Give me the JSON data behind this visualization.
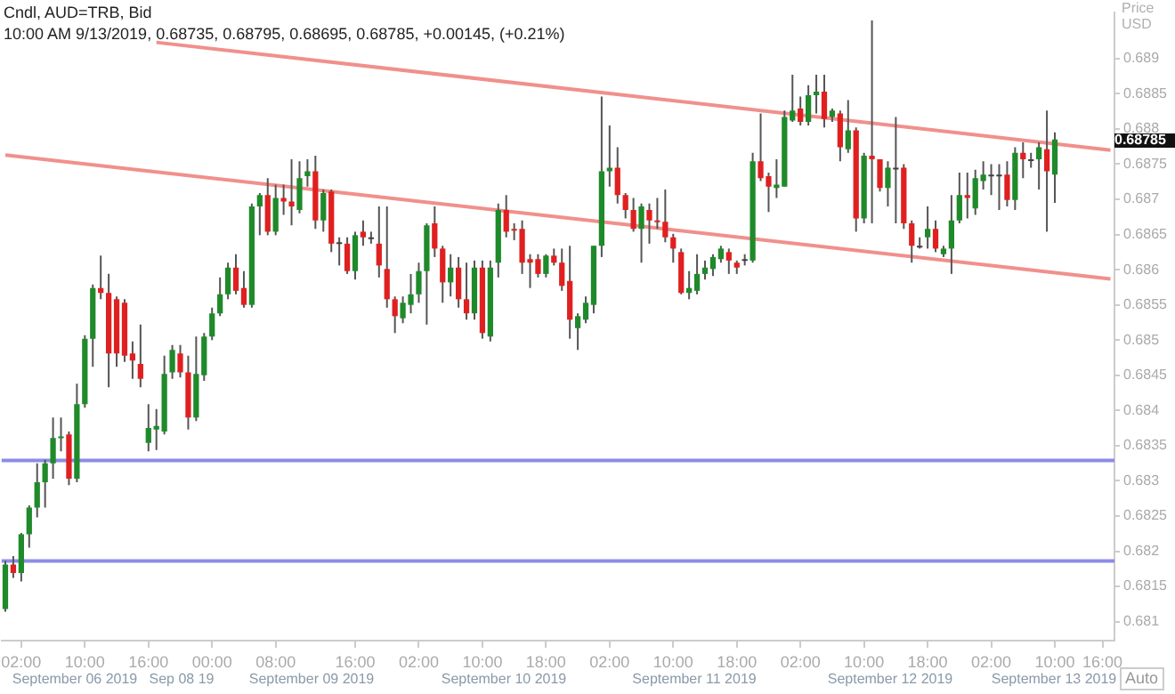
{
  "chart_data": {
    "type": "candlestick",
    "title": "Cndl, AUD=TRB, Bid",
    "subtitle": "10:00 AM 9/13/2019, 0.68735, 0.68795, 0.68695, 0.68785, +0.00145, (+0.21%)",
    "ylabel": "Price USD",
    "categories": [
      null,
      null,
      "02:00",
      null,
      null,
      null,
      null,
      null,
      null,
      null,
      "10:00",
      null,
      null,
      null,
      null,
      null,
      null,
      null,
      "16:00",
      null,
      null,
      null,
      null,
      null,
      null,
      null,
      "00:00",
      null,
      null,
      null,
      null,
      null,
      null,
      null,
      "08:00",
      null,
      null,
      null,
      null,
      null,
      null,
      null,
      null,
      null,
      "16:00",
      null,
      null,
      null,
      null,
      null,
      null,
      null,
      "02:00",
      null,
      null,
      null,
      null,
      null,
      null,
      null,
      "10:00",
      null,
      null,
      null,
      null,
      null,
      null,
      null,
      "18:00",
      null,
      null,
      null,
      null,
      null,
      null,
      null,
      "02:00",
      null,
      null,
      null,
      null,
      null,
      null,
      null,
      "10:00",
      null,
      null,
      null,
      null,
      null,
      null,
      null,
      "18:00",
      null,
      null,
      null,
      null,
      null,
      null,
      null,
      "02:00",
      null,
      null,
      null,
      null,
      null,
      null,
      null,
      "10:00",
      null,
      null,
      null,
      null,
      null,
      null,
      null,
      "18:00",
      null,
      null,
      null,
      null,
      null,
      null,
      null,
      "02:00",
      null,
      null,
      null,
      null,
      null,
      null,
      null,
      "10:00",
      null,
      null,
      null,
      null,
      null,
      "16:00",
      null
    ],
    "ylim": [
      0.68073,
      0.68966
    ],
    "yticks": [
      0.681,
      0.6815,
      0.682,
      0.6825,
      0.683,
      0.6835,
      0.684,
      0.6845,
      0.685,
      0.6855,
      0.686,
      0.6865,
      0.687,
      0.6875,
      0.688,
      0.6885,
      0.689
    ],
    "grid": false,
    "legend": false,
    "ohlc": [
      [
        0.68118,
        0.68186,
        0.68114,
        0.68181
      ],
      [
        0.68181,
        0.68193,
        0.68162,
        0.68169
      ],
      [
        0.68169,
        0.68226,
        0.68157,
        0.68224
      ],
      [
        0.68224,
        0.68265,
        0.68205,
        0.68262
      ],
      [
        0.68262,
        0.68325,
        0.68248,
        0.68298
      ],
      [
        0.68298,
        0.6833,
        0.68262,
        0.68325
      ],
      [
        0.68325,
        0.6839,
        0.68303,
        0.68361
      ],
      [
        0.68361,
        0.6839,
        0.68342,
        0.68363
      ],
      [
        0.68366,
        0.6837,
        0.68294,
        0.68303
      ],
      [
        0.68303,
        0.68438,
        0.68298,
        0.68409
      ],
      [
        0.68409,
        0.68507,
        0.68404,
        0.68502
      ],
      [
        0.68502,
        0.68579,
        0.68462,
        0.68574
      ],
      [
        0.68574,
        0.6862,
        0.68558,
        0.68567
      ],
      [
        0.68567,
        0.68594,
        0.68433,
        0.68481
      ],
      [
        0.68558,
        0.68562,
        0.68462,
        0.68481
      ],
      [
        0.68553,
        0.68558,
        0.68469,
        0.68478
      ],
      [
        0.68481,
        0.68498,
        0.68445,
        0.68471
      ],
      [
        0.68466,
        0.68522,
        0.68433,
        0.68445
      ],
      [
        0.68354,
        0.68409,
        0.68342,
        0.68375
      ],
      [
        0.68373,
        0.68402,
        0.68344,
        0.68378
      ],
      [
        0.6837,
        0.68478,
        0.68366,
        0.68452
      ],
      [
        0.68454,
        0.68493,
        0.68445,
        0.68486
      ],
      [
        0.68481,
        0.68493,
        0.68447,
        0.68454
      ],
      [
        0.68454,
        0.68478,
        0.68373,
        0.6839
      ],
      [
        0.6839,
        0.68505,
        0.68385,
        0.68452
      ],
      [
        0.6845,
        0.6851,
        0.68442,
        0.68505
      ],
      [
        0.68505,
        0.68546,
        0.685,
        0.68538
      ],
      [
        0.68538,
        0.68589,
        0.68534,
        0.68565
      ],
      [
        0.68565,
        0.6861,
        0.68558,
        0.68603
      ],
      [
        0.68603,
        0.68622,
        0.68565,
        0.6857
      ],
      [
        0.68574,
        0.68598,
        0.68546,
        0.6855
      ],
      [
        0.6855,
        0.68694,
        0.68546,
        0.6869
      ],
      [
        0.6869,
        0.68709,
        0.68649,
        0.68706
      ],
      [
        0.68706,
        0.6873,
        0.68649,
        0.68654
      ],
      [
        0.68654,
        0.68721,
        0.68649,
        0.68702
      ],
      [
        0.68702,
        0.68721,
        0.68678,
        0.68697
      ],
      [
        0.68697,
        0.68757,
        0.68663,
        0.6869
      ],
      [
        0.68685,
        0.68754,
        0.6868,
        0.6873
      ],
      [
        0.68733,
        0.68757,
        0.68718,
        0.6874
      ],
      [
        0.6874,
        0.68762,
        0.68658,
        0.6867
      ],
      [
        0.6867,
        0.68714,
        0.68654,
        0.68709
      ],
      [
        0.68711,
        0.68714,
        0.68625,
        0.68637
      ],
      [
        0.68639,
        0.68646,
        0.68606,
        0.68639
      ],
      [
        0.68637,
        0.68646,
        0.68594,
        0.68598
      ],
      [
        0.68598,
        0.68654,
        0.68586,
        0.68649
      ],
      [
        0.68654,
        0.6867,
        0.68634,
        0.68646
      ],
      [
        0.68646,
        0.68654,
        0.68637,
        0.68646
      ],
      [
        0.68637,
        0.6869,
        0.68589,
        0.68606
      ],
      [
        0.68601,
        0.6869,
        0.68546,
        0.68558
      ],
      [
        0.68558,
        0.68562,
        0.6851,
        0.68534
      ],
      [
        0.68531,
        0.68562,
        0.68524,
        0.68553
      ],
      [
        0.6855,
        0.68594,
        0.68538,
        0.68565
      ],
      [
        0.68565,
        0.6861,
        0.68553,
        0.68598
      ],
      [
        0.68598,
        0.68666,
        0.68522,
        0.68663
      ],
      [
        0.68666,
        0.6869,
        0.68618,
        0.6863
      ],
      [
        0.6863,
        0.68634,
        0.68553,
        0.68582
      ],
      [
        0.68582,
        0.68622,
        0.68562,
        0.68603
      ],
      [
        0.68603,
        0.68618,
        0.68546,
        0.68558
      ],
      [
        0.68558,
        0.6861,
        0.68529,
        0.68538
      ],
      [
        0.68538,
        0.68613,
        0.68529,
        0.68603
      ],
      [
        0.68603,
        0.68613,
        0.68502,
        0.6851
      ],
      [
        0.68505,
        0.68613,
        0.68498,
        0.68603
      ],
      [
        0.6861,
        0.68694,
        0.68589,
        0.68685
      ],
      [
        0.68685,
        0.68706,
        0.68646,
        0.68654
      ],
      [
        0.68658,
        0.68666,
        0.68642,
        0.68656
      ],
      [
        0.68658,
        0.6867,
        0.68594,
        0.6861
      ],
      [
        0.68615,
        0.68622,
        0.68574,
        0.6861
      ],
      [
        0.68615,
        0.68622,
        0.68589,
        0.68594
      ],
      [
        0.68594,
        0.68622,
        0.68589,
        0.6862
      ],
      [
        0.6862,
        0.6863,
        0.68606,
        0.6861
      ],
      [
        0.6861,
        0.6863,
        0.6857,
        0.68577
      ],
      [
        0.68584,
        0.68634,
        0.68502,
        0.68529
      ],
      [
        0.68517,
        0.68538,
        0.68486,
        0.68534
      ],
      [
        0.68529,
        0.68562,
        0.68524,
        0.68553
      ],
      [
        0.6855,
        0.68634,
        0.68538,
        0.68634
      ],
      [
        0.68634,
        0.68846,
        0.68618,
        0.6874
      ],
      [
        0.6874,
        0.68805,
        0.68718,
        0.68745
      ],
      [
        0.68745,
        0.68774,
        0.68694,
        0.68706
      ],
      [
        0.68706,
        0.68709,
        0.68673,
        0.68685
      ],
      [
        0.68685,
        0.68702,
        0.68654,
        0.68658
      ],
      [
        0.68658,
        0.68694,
        0.6861,
        0.6869
      ],
      [
        0.68685,
        0.68694,
        0.68637,
        0.6867
      ],
      [
        0.6867,
        0.68702,
        0.68658,
        0.68668
      ],
      [
        0.68668,
        0.68714,
        0.68639,
        0.68646
      ],
      [
        0.68646,
        0.68651,
        0.6861,
        0.6863
      ],
      [
        0.68625,
        0.6863,
        0.68565,
        0.68567
      ],
      [
        0.68567,
        0.68598,
        0.68558,
        0.68574
      ],
      [
        0.6857,
        0.68622,
        0.68565,
        0.68594
      ],
      [
        0.68594,
        0.68613,
        0.68586,
        0.68603
      ],
      [
        0.68601,
        0.68622,
        0.68591,
        0.68618
      ],
      [
        0.68615,
        0.68634,
        0.6861,
        0.6863
      ],
      [
        0.68625,
        0.6863,
        0.68594,
        0.68613
      ],
      [
        0.6861,
        0.68613,
        0.68594,
        0.68603
      ],
      [
        0.68615,
        0.68622,
        0.68606,
        0.68615
      ],
      [
        0.68613,
        0.68766,
        0.6861,
        0.68754
      ],
      [
        0.68754,
        0.68822,
        0.68726,
        0.6873
      ],
      [
        0.68733,
        0.68738,
        0.68682,
        0.68718
      ],
      [
        0.68716,
        0.68757,
        0.68702,
        0.68721
      ],
      [
        0.68718,
        0.68826,
        0.68718,
        0.68817
      ],
      [
        0.68812,
        0.68877,
        0.6881,
        0.68826
      ],
      [
        0.68829,
        0.68846,
        0.68805,
        0.6881
      ],
      [
        0.6881,
        0.68862,
        0.68805,
        0.68848
      ],
      [
        0.68848,
        0.68877,
        0.68822,
        0.68853
      ],
      [
        0.68853,
        0.68877,
        0.68802,
        0.68814
      ],
      [
        0.68817,
        0.68829,
        0.6881,
        0.68826
      ],
      [
        0.68822,
        0.68826,
        0.68754,
        0.68774
      ],
      [
        0.68771,
        0.68841,
        0.68766,
        0.68798
      ],
      [
        0.68798,
        0.68802,
        0.68654,
        0.68673
      ],
      [
        0.68673,
        0.68766,
        0.68666,
        0.68762
      ],
      [
        0.68762,
        0.68954,
        0.68666,
        0.68757
      ],
      [
        0.68757,
        0.68757,
        0.68711,
        0.68716
      ],
      [
        0.68716,
        0.68754,
        0.6869,
        0.68745
      ],
      [
        0.68745,
        0.68817,
        0.68666,
        0.68745
      ],
      [
        0.68745,
        0.6875,
        0.68658,
        0.68666
      ],
      [
        0.68666,
        0.6867,
        0.6861,
        0.68634
      ],
      [
        0.68634,
        0.68646,
        0.6863,
        0.68634
      ],
      [
        0.68646,
        0.6869,
        0.6863,
        0.68658
      ],
      [
        0.68658,
        0.6867,
        0.68625,
        0.6863
      ],
      [
        0.68622,
        0.68634,
        0.68618,
        0.6863
      ],
      [
        0.6863,
        0.68706,
        0.68594,
        0.6867
      ],
      [
        0.6867,
        0.68738,
        0.68666,
        0.68706
      ],
      [
        0.68706,
        0.68738,
        0.68673,
        0.68702
      ],
      [
        0.68687,
        0.68742,
        0.68678,
        0.6873
      ],
      [
        0.68726,
        0.68754,
        0.68714,
        0.68735
      ],
      [
        0.68735,
        0.6875,
        0.68706,
        0.68735
      ],
      [
        0.68735,
        0.6875,
        0.68685,
        0.68735
      ],
      [
        0.68735,
        0.68754,
        0.6869,
        0.68699
      ],
      [
        0.68699,
        0.68774,
        0.68685,
        0.68766
      ],
      [
        0.68766,
        0.68781,
        0.6873,
        0.68757
      ],
      [
        0.68757,
        0.68766,
        0.68745,
        0.68757
      ],
      [
        0.68757,
        0.68781,
        0.68714,
        0.68774
      ],
      [
        0.68771,
        0.68826,
        0.68654,
        0.6874
      ],
      [
        0.68735,
        0.68795,
        0.68695,
        0.68785
      ],
      null,
      null,
      null,
      null,
      null,
      null,
      null
    ],
    "colors": [
      "#1f8a2a",
      "#e02020",
      "#1f8a2a",
      "#1f8a2a",
      "#1f8a2a",
      "#1f8a2a",
      "#1f8a2a",
      "#1f8a2a",
      "#e02020",
      "#1f8a2a",
      "#1f8a2a",
      "#1f8a2a",
      "#e02020",
      "#e02020",
      "#e02020",
      "#e02020",
      "#e02020",
      "#e02020",
      "#1f8a2a",
      "#1f8a2a",
      "#1f8a2a",
      "#1f8a2a",
      "#e02020",
      "#e02020",
      "#1f8a2a",
      "#1f8a2a",
      "#1f8a2a",
      "#1f8a2a",
      "#1f8a2a",
      "#e02020",
      "#e02020",
      "#1f8a2a",
      "#1f8a2a",
      "#e02020",
      "#1f8a2a",
      "#e02020",
      "#e02020",
      "#1f8a2a",
      "#1f8a2a",
      "#e02020",
      "#1f8a2a",
      "#e02020",
      "#404040",
      "#e02020",
      "#1f8a2a",
      "#e02020",
      "#404040",
      "#e02020",
      "#e02020",
      "#e02020",
      "#1f8a2a",
      "#1f8a2a",
      "#1f8a2a",
      "#1f8a2a",
      "#e02020",
      "#e02020",
      "#1f8a2a",
      "#e02020",
      "#e02020",
      "#1f8a2a",
      "#e02020",
      "#1f8a2a",
      "#1f8a2a",
      "#e02020",
      "#e02020",
      "#e02020",
      "#e02020",
      "#e02020",
      "#1f8a2a",
      "#e02020",
      "#e02020",
      "#e02020",
      "#1f8a2a",
      "#1f8a2a",
      "#1f8a2a",
      "#1f8a2a",
      "#1f8a2a",
      "#e02020",
      "#e02020",
      "#e02020",
      "#1f8a2a",
      "#e02020",
      "#e02020",
      "#e02020",
      "#e02020",
      "#e02020",
      "#1f8a2a",
      "#1f8a2a",
      "#1f8a2a",
      "#1f8a2a",
      "#1f8a2a",
      "#e02020",
      "#e02020",
      "#404040",
      "#1f8a2a",
      "#e02020",
      "#e02020",
      "#1f8a2a",
      "#1f8a2a",
      "#1f8a2a",
      "#e02020",
      "#1f8a2a",
      "#1f8a2a",
      "#e02020",
      "#1f8a2a",
      "#e02020",
      "#1f8a2a",
      "#e02020",
      "#1f8a2a",
      "#e02020",
      "#e02020",
      "#1f8a2a",
      "#404040",
      "#e02020",
      "#e02020",
      "#404040",
      "#1f8a2a",
      "#e02020",
      "#1f8a2a",
      "#1f8a2a",
      "#1f8a2a",
      "#e02020",
      "#1f8a2a",
      "#1f8a2a",
      "#404040",
      "#404040",
      "#e02020",
      "#1f8a2a",
      "#e02020",
      "#404040",
      "#1f8a2a",
      "#e02020",
      "#1f8a2a",
      null,
      null,
      null,
      null,
      null,
      null,
      null
    ],
    "series": [
      {
        "type": "line",
        "color": "#f0908c",
        "values": [
          null,
          null,
          null,
          null,
          null,
          null,
          null,
          null,
          null,
          null,
          null,
          null,
          null,
          null,
          null,
          null,
          null,
          null,
          null,
          0.68923,
          null,
          null,
          null,
          null,
          null,
          null,
          null,
          null,
          null,
          null,
          null,
          null,
          null,
          null,
          null,
          null,
          null,
          null,
          null,
          null,
          null,
          null,
          null,
          null,
          null,
          null,
          null,
          null,
          null,
          null,
          null,
          null,
          null,
          null,
          null,
          null,
          null,
          null,
          null,
          null,
          null,
          null,
          null,
          null,
          null,
          null,
          null,
          null,
          null,
          null,
          null,
          null,
          null,
          null,
          null,
          null,
          null,
          null,
          null,
          null,
          null,
          null,
          null,
          null,
          null,
          null,
          null,
          null,
          null,
          null,
          null,
          null,
          null,
          null,
          null,
          null,
          null,
          null,
          null,
          null,
          null,
          null,
          null,
          null,
          null,
          null,
          null,
          null,
          null,
          null,
          null,
          null,
          null,
          null,
          null,
          null,
          null,
          null,
          null,
          null,
          null,
          null,
          null,
          null,
          null,
          null,
          null,
          null,
          null,
          null,
          null,
          null,
          null,
          null,
          null,
          null,
          null,
          null,
          null,
          0.6877
        ]
      },
      {
        "type": "line",
        "color": "#f0908c",
        "values": [
          0.68763,
          null,
          null,
          null,
          null,
          null,
          null,
          null,
          null,
          null,
          null,
          null,
          null,
          null,
          null,
          null,
          null,
          null,
          null,
          null,
          null,
          null,
          null,
          null,
          null,
          null,
          null,
          null,
          null,
          null,
          null,
          null,
          null,
          null,
          null,
          null,
          null,
          null,
          null,
          null,
          null,
          null,
          null,
          null,
          null,
          null,
          null,
          null,
          null,
          null,
          null,
          null,
          null,
          null,
          null,
          null,
          null,
          null,
          null,
          null,
          null,
          null,
          null,
          null,
          null,
          null,
          null,
          null,
          null,
          null,
          null,
          null,
          null,
          null,
          null,
          null,
          null,
          null,
          null,
          null,
          null,
          null,
          null,
          null,
          null,
          null,
          null,
          null,
          null,
          null,
          null,
          null,
          null,
          null,
          null,
          null,
          null,
          null,
          null,
          null,
          null,
          null,
          null,
          null,
          null,
          null,
          null,
          null,
          null,
          null,
          null,
          null,
          null,
          null,
          null,
          null,
          null,
          null,
          null,
          null,
          null,
          null,
          null,
          null,
          null,
          null,
          null,
          null,
          null,
          null,
          null,
          null,
          null,
          null,
          null,
          null,
          null,
          null,
          null,
          0.68587
        ]
      }
    ],
    "ref_lines": [
      {
        "axis": "y",
        "value": 0.68329,
        "color": "#8c8ce6"
      },
      {
        "axis": "y",
        "value": 0.68186,
        "color": "#8c8ce6"
      }
    ],
    "annotations": [
      "0.68785",
      "September 06 2019",
      "Sep 08 19",
      "September 09 2019",
      "September 10 2019",
      "September 11 2019",
      "September 12 2019",
      "September 13 2019",
      "Auto"
    ]
  }
}
